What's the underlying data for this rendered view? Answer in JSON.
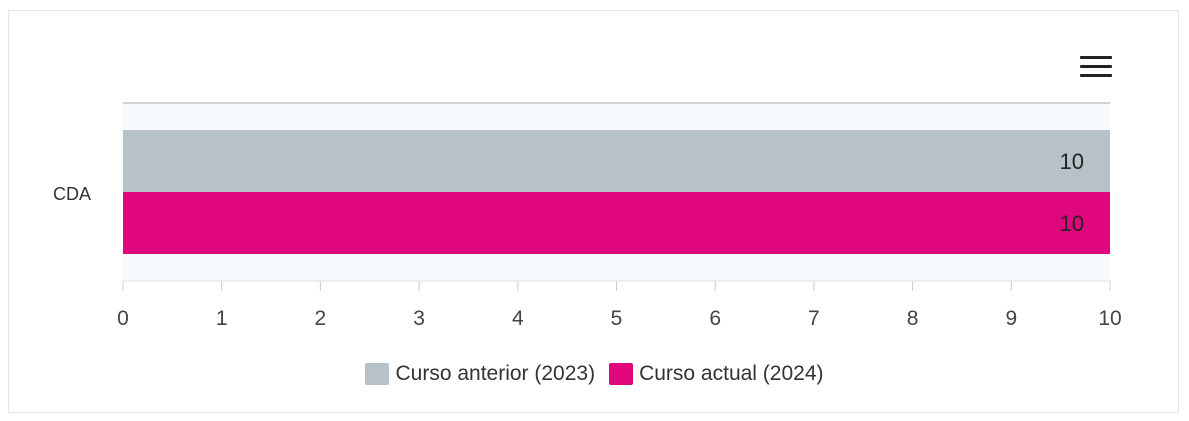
{
  "chart_data": {
    "type": "bar",
    "orientation": "horizontal",
    "categories": [
      "CDA"
    ],
    "series": [
      {
        "name": "Curso anterior (2023)",
        "values": [
          10
        ],
        "color": "#b7c1c8"
      },
      {
        "name": "Curso actual (2024)",
        "values": [
          10
        ],
        "color": "#e0077d"
      }
    ],
    "xlim": [
      0,
      10
    ],
    "xticks": [
      "0",
      "1",
      "2",
      "3",
      "4",
      "5",
      "6",
      "7",
      "8",
      "9",
      "10"
    ],
    "data_labels": [
      "10",
      "10"
    ],
    "legend_placement": "bottom-center",
    "grid": false
  },
  "menu": {
    "icon": "hamburger-menu-icon"
  }
}
